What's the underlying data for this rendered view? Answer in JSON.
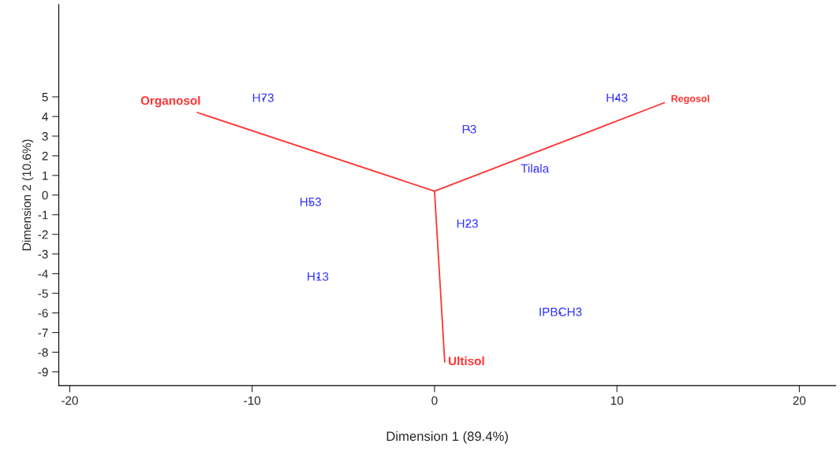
{
  "chart_data": {
    "type": "scatter",
    "xlabel": "Dimension 1 (89.4%)",
    "ylabel": "Dimension 2 (10.6%)",
    "xlim": [
      -20.6,
      22
    ],
    "ylim": [
      -9.7,
      9.7
    ],
    "xticks": [
      -20,
      -10,
      0,
      10,
      20
    ],
    "yticks": [
      -9,
      -8,
      -7,
      -6,
      -5,
      -4,
      -3,
      -2,
      -1,
      0,
      1,
      2,
      3,
      4,
      5
    ],
    "grid": false,
    "marker": "none",
    "series": [
      {
        "color": "#3333ff",
        "x": [
          -9.4,
          10.0,
          1.9,
          5.5,
          -6.8,
          1.8,
          -6.4,
          6.9
        ],
        "values": [
          4.9,
          4.9,
          3.3,
          1.3,
          -0.4,
          -1.5,
          -4.2,
          -6.0
        ],
        "value_labels": [
          "H73",
          "H43",
          "P3",
          "Tilala",
          "H53",
          "H23",
          "H13",
          "IPBCH3"
        ]
      },
      {
        "type": "line",
        "color": "#ff3333",
        "x": [
          0,
          -13.0
        ],
        "values": [
          0.2,
          4.2
        ],
        "value_labels": [
          null,
          "Organosol"
        ]
      },
      {
        "type": "line",
        "color": "#ff3333",
        "x": [
          0,
          12.6
        ],
        "values": [
          0.2,
          4.7
        ],
        "value_labels": [
          null,
          "Regosol"
        ]
      },
      {
        "type": "line",
        "color": "#ff3333",
        "x": [
          0,
          0.56
        ],
        "values": [
          0.2,
          -8.5
        ],
        "value_labels": [
          null,
          "Ultisol"
        ]
      }
    ]
  }
}
